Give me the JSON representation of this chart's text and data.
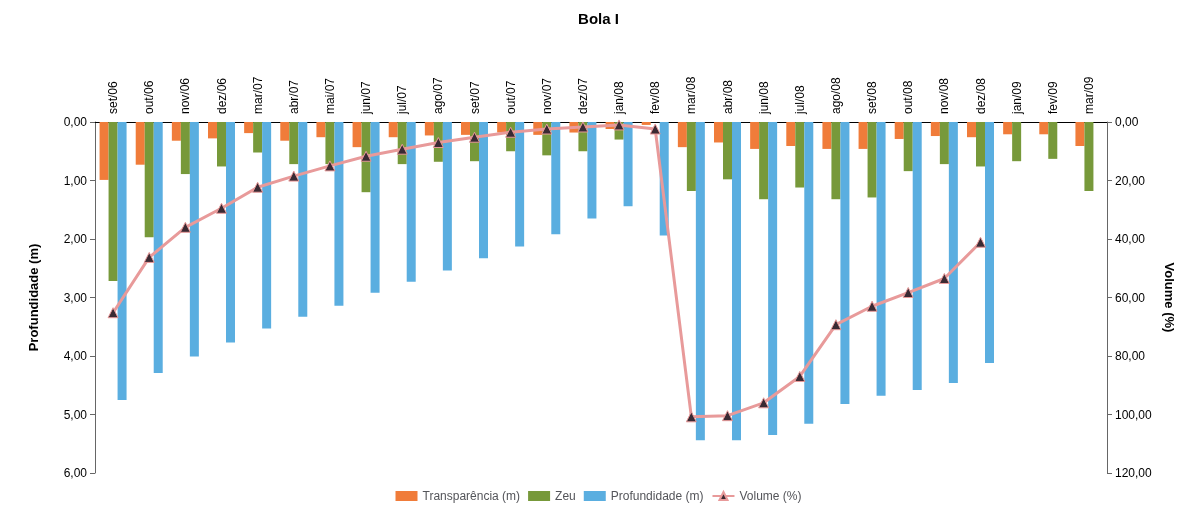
{
  "chart_data": {
    "type": "bar",
    "title": "Bola I",
    "ylabel": "Profundidade (m)",
    "y2label": "Volume (%)",
    "categories": [
      "set/06",
      "out/06",
      "nov/06",
      "dez/06",
      "mar/07",
      "abr/07",
      "mai/07",
      "jun/07",
      "jul/07",
      "ago/07",
      "set/07",
      "out/07",
      "nov/07",
      "dez/07",
      "jan/08",
      "fev/08",
      "mar/08",
      "abr/08",
      "jun/08",
      "jul/08",
      "ago/08",
      "set/08",
      "out/08",
      "nov/08",
      "dez/08",
      "jan/09",
      "fev/09",
      "mar/09"
    ],
    "series": [
      {
        "name": "Transparência (m)",
        "color": "#f07c3a",
        "values": [
          0.99,
          0.73,
          0.32,
          0.28,
          0.19,
          0.32,
          0.26,
          0.43,
          0.26,
          0.23,
          0.22,
          0.18,
          0.22,
          0.18,
          0.12,
          0.05,
          0.43,
          0.35,
          0.46,
          0.41,
          0.46,
          0.46,
          0.29,
          0.24,
          0.26,
          0.21,
          0.21,
          0.41
        ]
      },
      {
        "name": "Zeu",
        "color": "#77993a",
        "values": [
          2.72,
          1.97,
          0.89,
          0.76,
          0.52,
          0.72,
          0.72,
          1.2,
          0.72,
          0.68,
          0.67,
          0.5,
          0.57,
          0.5,
          0.3,
          null,
          1.18,
          0.98,
          1.32,
          1.12,
          1.32,
          1.29,
          0.84,
          0.72,
          0.76,
          0.67,
          0.63,
          1.18
        ]
      },
      {
        "name": "Profundidade (m)",
        "color": "#5aaee0",
        "values": [
          4.75,
          4.29,
          4.01,
          3.77,
          3.53,
          3.33,
          3.14,
          2.92,
          2.73,
          2.54,
          2.33,
          2.13,
          1.92,
          1.65,
          1.44,
          1.94,
          5.44,
          5.44,
          5.35,
          5.16,
          4.82,
          4.68,
          4.58,
          4.46,
          4.12,
          null,
          null,
          null
        ]
      },
      {
        "name": "Volume (%)",
        "type": "line",
        "axis": "y2",
        "color": "#e89a9a",
        "marker": "triangle",
        "values": [
          65.2,
          46.3,
          36,
          29.5,
          22.3,
          18.5,
          15,
          11.7,
          9.3,
          7,
          5.2,
          3.5,
          2.4,
          1.7,
          1,
          2.4,
          100.8,
          100.4,
          96,
          87,
          69.3,
          63,
          58.3,
          53.5,
          41.1,
          null,
          null,
          null
        ]
      }
    ],
    "ylim": [
      6,
      0
    ],
    "yticks": [
      {
        "value": 0,
        "label": "0,00"
      },
      {
        "value": 1,
        "label": "1,00"
      },
      {
        "value": 2,
        "label": "2,00"
      },
      {
        "value": 3,
        "label": "3,00"
      },
      {
        "value": 4,
        "label": "4,00"
      },
      {
        "value": 5,
        "label": "5,00"
      },
      {
        "value": 6,
        "label": "6,00"
      }
    ],
    "y2lim": [
      120,
      0
    ],
    "y2ticks": [
      {
        "value": 0,
        "label": "0,00"
      },
      {
        "value": 20,
        "label": "20,00"
      },
      {
        "value": 40,
        "label": "40,00"
      },
      {
        "value": 60,
        "label": "60,00"
      },
      {
        "value": 80,
        "label": "80,00"
      },
      {
        "value": 100,
        "label": "100,00"
      },
      {
        "value": 120,
        "label": "120,00"
      }
    ],
    "legend": "bottom",
    "grid": false
  }
}
